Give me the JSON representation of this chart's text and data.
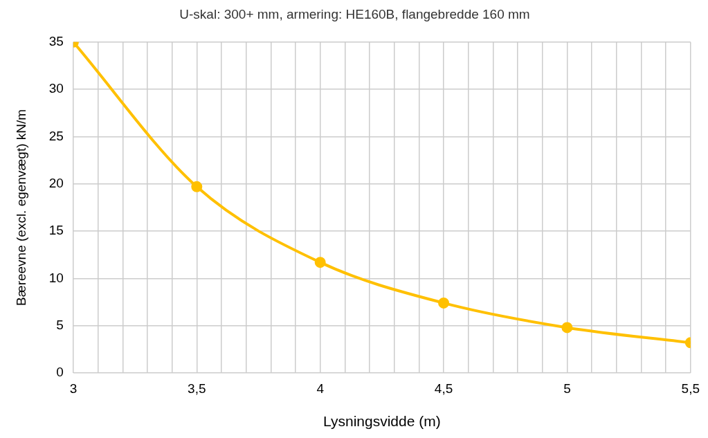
{
  "chart_data": {
    "type": "line",
    "title": "U-skal: 300+ mm, armering: HE160B, flangebredde 160 mm",
    "xlabel": "Lysningsvidde (m)",
    "ylabel": "Bæreevne (excl. egenvægt) kN/m",
    "x": [
      3,
      3.5,
      4,
      4.5,
      5,
      5.5
    ],
    "series": [
      {
        "color": "#ffc000",
        "values": [
          35,
          19.7,
          11.7,
          7.4,
          4.8,
          3.2
        ]
      }
    ],
    "xlim": [
      3,
      5.5
    ],
    "xticks": [
      3,
      {
        "value": 3.1,
        "label": null
      },
      {
        "value": 3.2,
        "label": null
      },
      {
        "value": 3.3,
        "label": null
      },
      {
        "value": 3.4,
        "label": null
      },
      {
        "value": 3.5,
        "label": "3,5"
      },
      {
        "value": 3.6,
        "label": null
      },
      {
        "value": 3.7,
        "label": null
      },
      {
        "value": 3.8,
        "label": null
      },
      {
        "value": 3.9,
        "label": null
      },
      4,
      {
        "value": 4.1,
        "label": null
      },
      {
        "value": 4.2,
        "label": null
      },
      {
        "value": 4.3,
        "label": null
      },
      {
        "value": 4.4,
        "label": null
      },
      {
        "value": 4.5,
        "label": "4,5"
      },
      {
        "value": 4.6,
        "label": null
      },
      {
        "value": 4.7,
        "label": null
      },
      {
        "value": 4.8,
        "label": null
      },
      {
        "value": 4.9,
        "label": null
      },
      5,
      {
        "value": 5.1,
        "label": null
      },
      {
        "value": 5.2,
        "label": null
      },
      {
        "value": 5.3,
        "label": null
      },
      {
        "value": 5.4,
        "label": null
      },
      {
        "value": 5.5,
        "label": "5,5"
      }
    ],
    "ylim": [
      0,
      35
    ],
    "yticks": [
      0,
      5,
      10,
      15,
      20,
      25,
      30,
      35
    ],
    "grid": true,
    "legend": false,
    "marker": "circle",
    "line_style": "solid"
  }
}
